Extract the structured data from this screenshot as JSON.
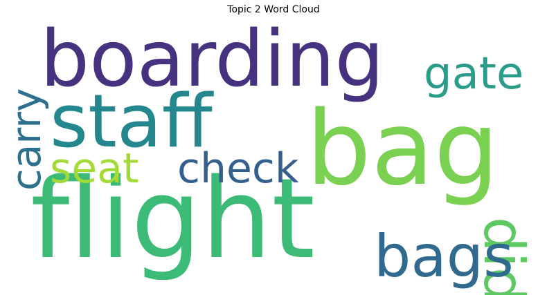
{
  "chart_data": {
    "type": "wordcloud",
    "title": "Topic 2 Word Cloud",
    "colormap": "viridis",
    "words": [
      {
        "text": "boarding",
        "color": "#46327e"
      },
      {
        "text": "staff",
        "color": "#24878e"
      },
      {
        "text": "flight",
        "color": "#3bbb75"
      },
      {
        "text": "bag",
        "color": "#7ad151"
      },
      {
        "text": "gate",
        "color": "#2a9d8a"
      },
      {
        "text": "carry",
        "color": "#2d708e"
      },
      {
        "text": "seat",
        "color": "#a2da37"
      },
      {
        "text": "check",
        "color": "#355f8d"
      },
      {
        "text": "did",
        "color": "#5ec962"
      },
      {
        "text": "bags",
        "color": "#306a8e"
      }
    ]
  }
}
